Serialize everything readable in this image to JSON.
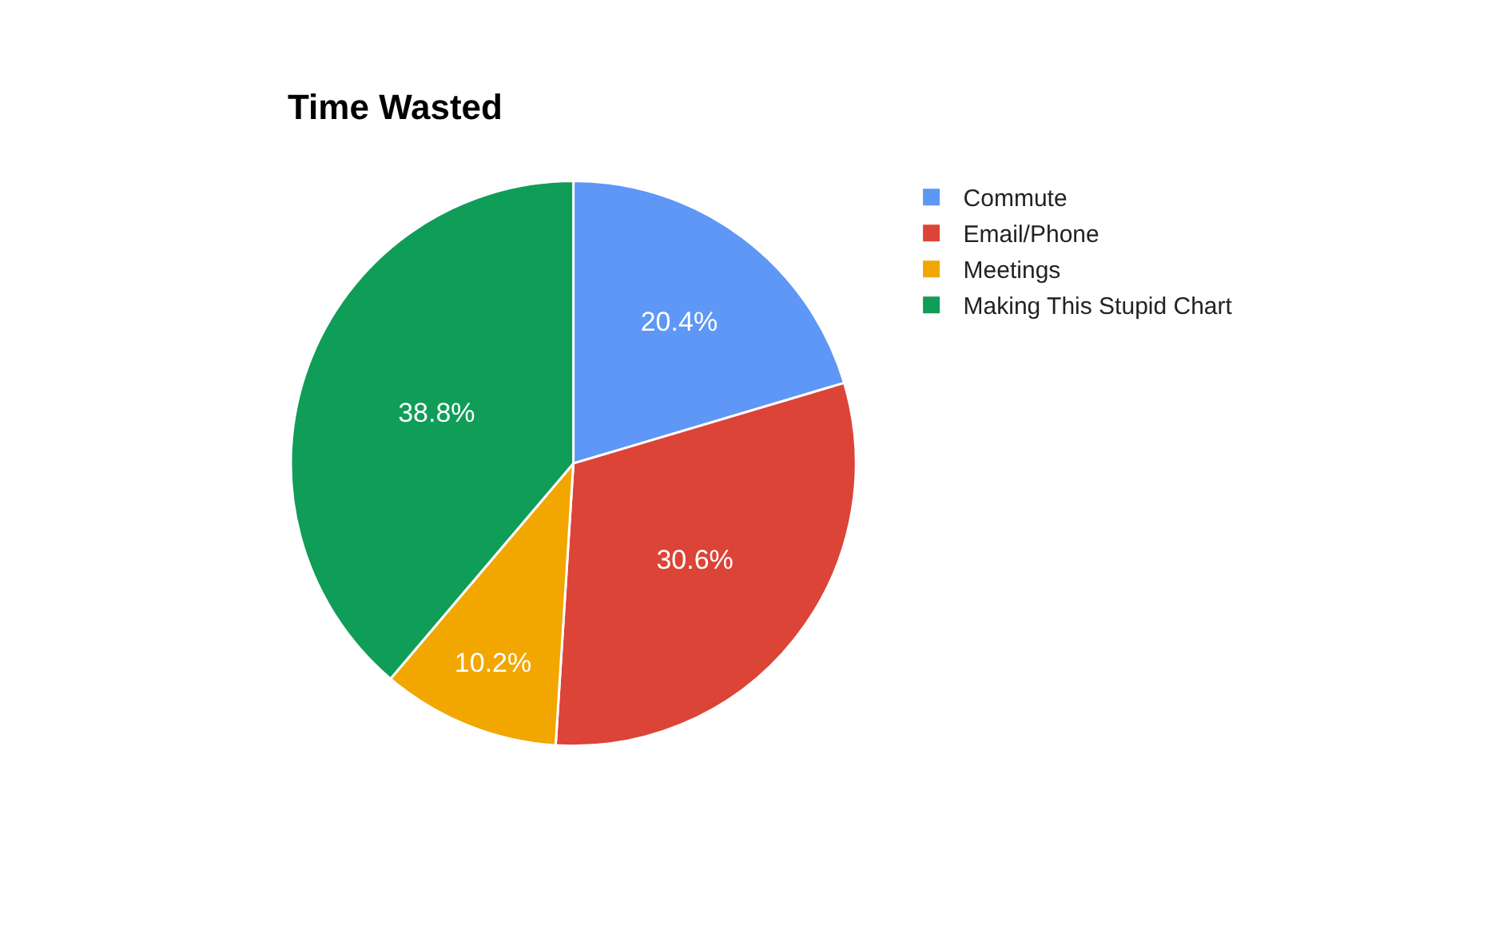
{
  "chart_data": {
    "type": "pie",
    "title": "Time Wasted",
    "categories": [
      "Commute",
      "Email/Phone",
      "Meetings",
      "Making This Stupid Chart"
    ],
    "values": [
      20.4,
      30.6,
      10.2,
      38.8
    ],
    "value_labels": [
      "20.4%",
      "30.6%",
      "10.2%",
      "38.8%"
    ],
    "colors": [
      "#5e97f6",
      "#db4437",
      "#f2a600",
      "#0f9d58"
    ],
    "legend": "right"
  }
}
